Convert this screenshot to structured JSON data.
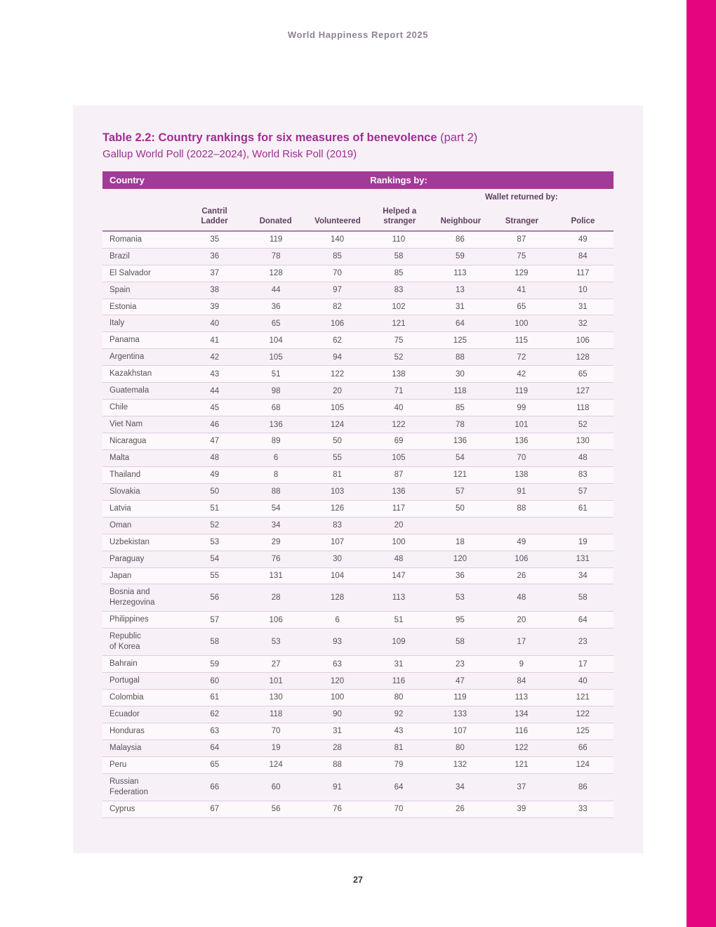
{
  "document": {
    "running_header": "World Happiness Report 2025",
    "page_number": "27"
  },
  "table": {
    "title": "Table 2.2: Country rankings for six measures of benevolence",
    "title_suffix": " (part 2)",
    "subtitle": "Gallup World Poll (2022–2024), World Risk Poll (2019)",
    "header_bar": {
      "country_label": "Country",
      "rankings_label": "Rankings by:"
    },
    "wallet_group_label": "Wallet returned by:",
    "columns": [
      "Cantril Ladder",
      "Donated",
      "Volunteered",
      "Helped a stranger",
      "Neighbour",
      "Stranger",
      "Police"
    ],
    "rows": [
      {
        "country": "Romania",
        "values": [
          "35",
          "119",
          "140",
          "110",
          "86",
          "87",
          "49"
        ]
      },
      {
        "country": "Brazil",
        "values": [
          "36",
          "78",
          "85",
          "58",
          "59",
          "75",
          "84"
        ]
      },
      {
        "country": "El Salvador",
        "values": [
          "37",
          "128",
          "70",
          "85",
          "113",
          "129",
          "117"
        ]
      },
      {
        "country": "Spain",
        "values": [
          "38",
          "44",
          "97",
          "83",
          "13",
          "41",
          "10"
        ]
      },
      {
        "country": "Estonia",
        "values": [
          "39",
          "36",
          "82",
          "102",
          "31",
          "65",
          "31"
        ]
      },
      {
        "country": "Italy",
        "values": [
          "40",
          "65",
          "106",
          "121",
          "64",
          "100",
          "32"
        ]
      },
      {
        "country": "Panama",
        "values": [
          "41",
          "104",
          "62",
          "75",
          "125",
          "115",
          "106"
        ]
      },
      {
        "country": "Argentina",
        "values": [
          "42",
          "105",
          "94",
          "52",
          "88",
          "72",
          "128"
        ]
      },
      {
        "country": "Kazakhstan",
        "values": [
          "43",
          "51",
          "122",
          "138",
          "30",
          "42",
          "65"
        ]
      },
      {
        "country": "Guatemala",
        "values": [
          "44",
          "98",
          "20",
          "71",
          "118",
          "119",
          "127"
        ]
      },
      {
        "country": "Chile",
        "values": [
          "45",
          "68",
          "105",
          "40",
          "85",
          "99",
          "118"
        ]
      },
      {
        "country": "Viet Nam",
        "values": [
          "46",
          "136",
          "124",
          "122",
          "78",
          "101",
          "52"
        ]
      },
      {
        "country": "Nicaragua",
        "values": [
          "47",
          "89",
          "50",
          "69",
          "136",
          "136",
          "130"
        ]
      },
      {
        "country": "Malta",
        "values": [
          "48",
          "6",
          "55",
          "105",
          "54",
          "70",
          "48"
        ]
      },
      {
        "country": "Thailand",
        "values": [
          "49",
          "8",
          "81",
          "87",
          "121",
          "138",
          "83"
        ]
      },
      {
        "country": "Slovakia",
        "values": [
          "50",
          "88",
          "103",
          "136",
          "57",
          "91",
          "57"
        ]
      },
      {
        "country": "Latvia",
        "values": [
          "51",
          "54",
          "126",
          "117",
          "50",
          "88",
          "61"
        ]
      },
      {
        "country": "Oman",
        "values": [
          "52",
          "34",
          "83",
          "20",
          "",
          "",
          ""
        ]
      },
      {
        "country": "Uzbekistan",
        "values": [
          "53",
          "29",
          "107",
          "100",
          "18",
          "49",
          "19"
        ]
      },
      {
        "country": "Paraguay",
        "values": [
          "54",
          "76",
          "30",
          "48",
          "120",
          "106",
          "131"
        ]
      },
      {
        "country": "Japan",
        "values": [
          "55",
          "131",
          "104",
          "147",
          "36",
          "26",
          "34"
        ]
      },
      {
        "country": "Bosnia and\nHerzegovina",
        "values": [
          "56",
          "28",
          "128",
          "113",
          "53",
          "48",
          "58"
        ]
      },
      {
        "country": "Philippines",
        "values": [
          "57",
          "106",
          "6",
          "51",
          "95",
          "20",
          "64"
        ]
      },
      {
        "country": "Republic\nof Korea",
        "values": [
          "58",
          "53",
          "93",
          "109",
          "58",
          "17",
          "23"
        ]
      },
      {
        "country": "Bahrain",
        "values": [
          "59",
          "27",
          "63",
          "31",
          "23",
          "9",
          "17"
        ]
      },
      {
        "country": "Portugal",
        "values": [
          "60",
          "101",
          "120",
          "116",
          "47",
          "84",
          "40"
        ]
      },
      {
        "country": "Colombia",
        "values": [
          "61",
          "130",
          "100",
          "80",
          "119",
          "113",
          "121"
        ]
      },
      {
        "country": "Ecuador",
        "values": [
          "62",
          "118",
          "90",
          "92",
          "133",
          "134",
          "122"
        ]
      },
      {
        "country": "Honduras",
        "values": [
          "63",
          "70",
          "31",
          "43",
          "107",
          "116",
          "125"
        ]
      },
      {
        "country": "Malaysia",
        "values": [
          "64",
          "19",
          "28",
          "81",
          "80",
          "122",
          "66"
        ]
      },
      {
        "country": "Peru",
        "values": [
          "65",
          "124",
          "88",
          "79",
          "132",
          "121",
          "124"
        ]
      },
      {
        "country": "Russian\nFederation",
        "values": [
          "66",
          "60",
          "91",
          "64",
          "34",
          "37",
          "86"
        ]
      },
      {
        "country": "Cyprus",
        "values": [
          "67",
          "56",
          "76",
          "70",
          "26",
          "39",
          "33"
        ]
      }
    ]
  },
  "colors": {
    "accent_magenta": "#e5057e",
    "header_bar_purple": "#a23a97",
    "title_purple": "#9e2f92",
    "panel_background": "#f8f0f7",
    "body_text": "#585058",
    "row_separator": "#e2cbdf"
  }
}
